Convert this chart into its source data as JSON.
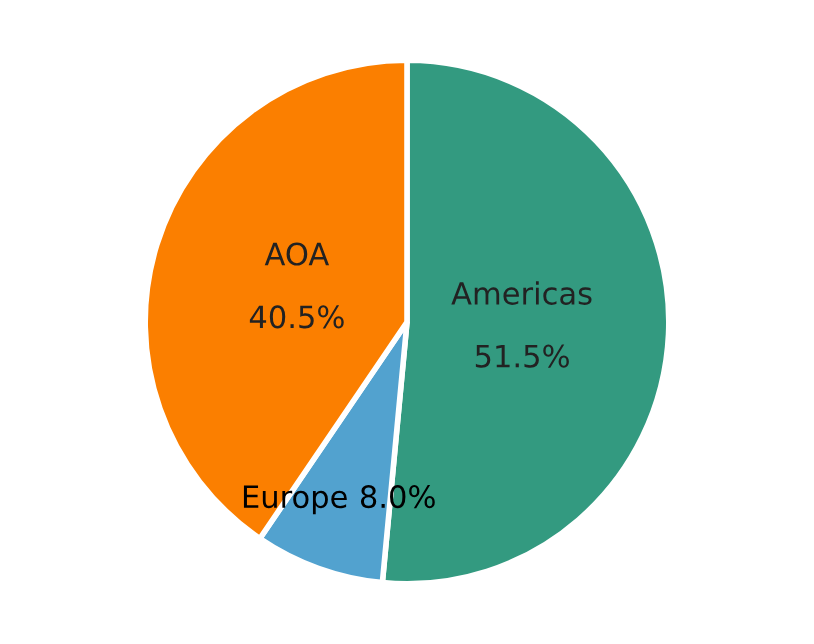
{
  "chart_data": {
    "type": "pie",
    "categories": [
      "Americas",
      "Europe",
      "AOA"
    ],
    "values": [
      51.5,
      8.0,
      40.5
    ],
    "colors": [
      "#339a80",
      "#52a2cf",
      "#fb7f00"
    ],
    "value_labels": [
      "51.5%",
      "8.0%",
      "40.5%"
    ]
  }
}
